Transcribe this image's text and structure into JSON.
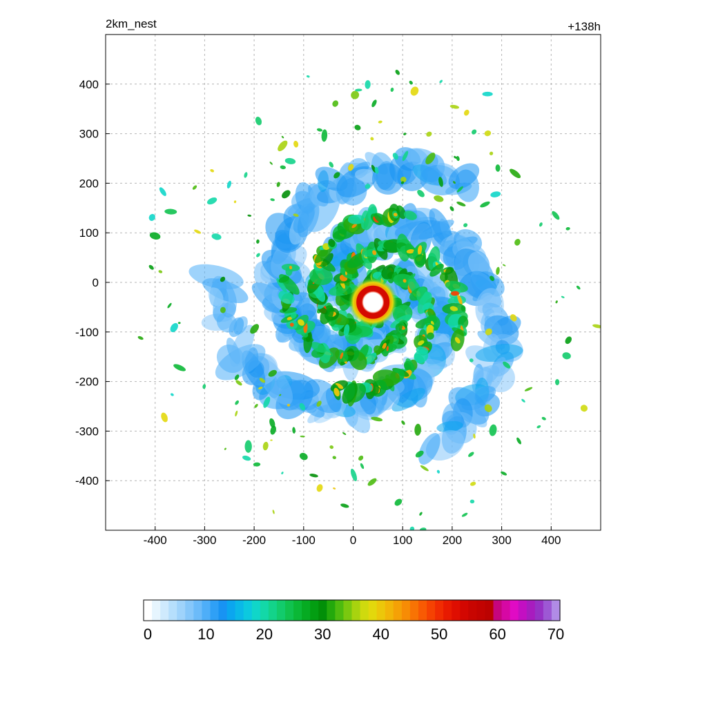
{
  "chart_data": {
    "type": "heatmap",
    "title_left": "2km_nest",
    "title_right": "+138h",
    "xlabel": "",
    "ylabel": "",
    "xlim": [
      -500,
      500
    ],
    "ylim": [
      -500,
      500
    ],
    "xticks": [
      -400,
      -300,
      -200,
      -100,
      0,
      100,
      200,
      300,
      400
    ],
    "yticks": [
      400,
      300,
      200,
      100,
      0,
      -100,
      -200,
      -300,
      -400
    ],
    "grid": true,
    "field": "simulated reflectivity of a tropical cyclone",
    "center": [
      40,
      -40
    ],
    "colorbar": {
      "min": 0,
      "max": 70,
      "ticks": [
        0,
        10,
        20,
        30,
        40,
        50,
        60,
        70
      ],
      "colors": [
        "#ffffff",
        "#e6f5fe",
        "#cfeafd",
        "#b6dffc",
        "#9fd3fb",
        "#86c7fa",
        "#6cbbf9",
        "#4eaef8",
        "#2fa0f6",
        "#1893f3",
        "#0ba6ef",
        "#0ab8e8",
        "#0cc9df",
        "#10d6c9",
        "#13d8a8",
        "#13d38a",
        "#12cb6c",
        "#10c24f",
        "#0bb836",
        "#06ab22",
        "#039e12",
        "#028f08",
        "#23a90c",
        "#4dbb0f",
        "#7ac80f",
        "#a8d30f",
        "#cfda0e",
        "#e3d80c",
        "#ecc70a",
        "#f2b508",
        "#f5a106",
        "#f78c05",
        "#f87304",
        "#f85a03",
        "#f54202",
        "#f02c02",
        "#e81a01",
        "#df0e01",
        "#d30701",
        "#c80501",
        "#c20301",
        "#bb0201",
        "#c6057e",
        "#d608a4",
        "#e00bc4",
        "#c30fc2",
        "#a81cbf",
        "#9732c5",
        "#9d58d4",
        "#b18be6"
      ]
    }
  }
}
